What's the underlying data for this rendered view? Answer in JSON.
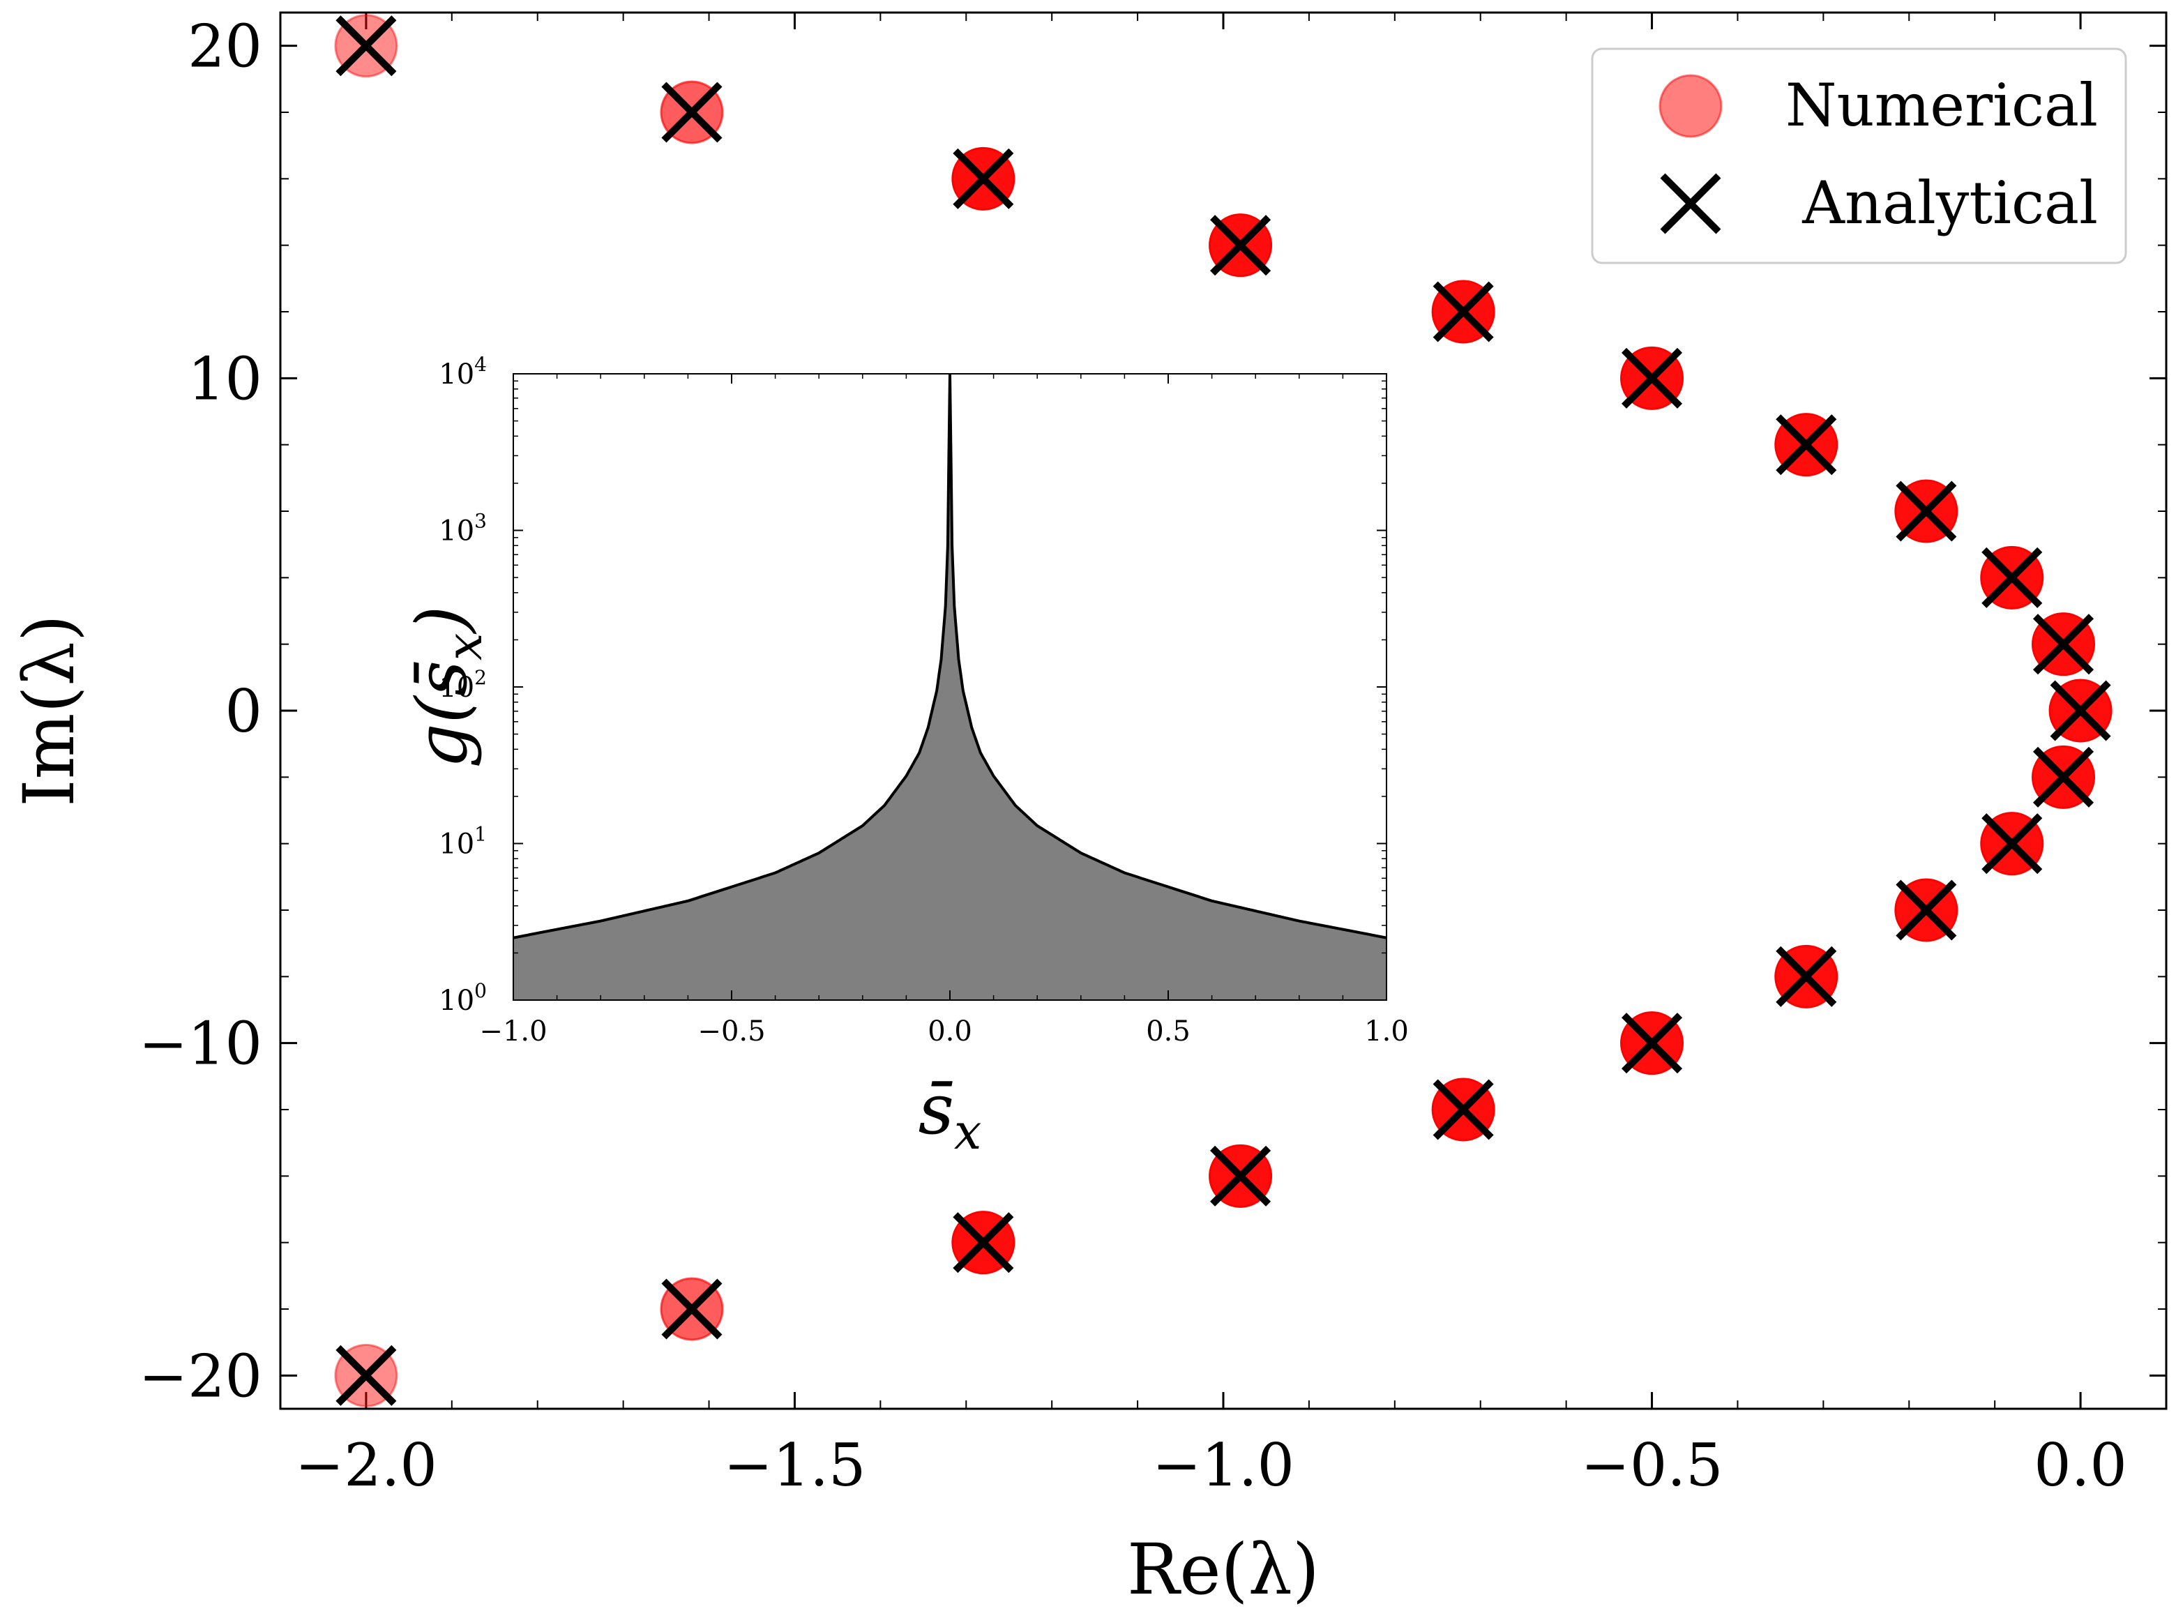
{
  "chart_data": [
    {
      "type": "scatter",
      "role": "main",
      "title": "",
      "xlabel": "Re(λ)",
      "ylabel": "Im(λ)",
      "xlim": [
        -2.1,
        0.1
      ],
      "ylim": [
        -21,
        21
      ],
      "xticks": [
        -2.0,
        -1.5,
        -1.0,
        -0.5,
        0.0
      ],
      "xtick_labels": [
        "−2.0",
        "−1.5",
        "−1.0",
        "−0.5",
        "0.0"
      ],
      "yticks": [
        -20,
        -10,
        0,
        10,
        20
      ],
      "ytick_labels": [
        "−20",
        "−10",
        "0",
        "10",
        "20"
      ],
      "legend_position": "top-right",
      "series": [
        {
          "name": "Numerical",
          "marker": "circle",
          "color": "#ff0000",
          "points": [
            {
              "x": -2.0,
              "y": 20,
              "alpha": 0.45
            },
            {
              "x": -1.62,
              "y": 18,
              "alpha": 0.65
            },
            {
              "x": -1.28,
              "y": 16,
              "alpha": 1.0
            },
            {
              "x": -0.98,
              "y": 14,
              "alpha": 1.0
            },
            {
              "x": -0.72,
              "y": 12,
              "alpha": 1.0
            },
            {
              "x": -0.5,
              "y": 10,
              "alpha": 1.0
            },
            {
              "x": -0.32,
              "y": 8,
              "alpha": 1.0
            },
            {
              "x": -0.18,
              "y": 6,
              "alpha": 1.0
            },
            {
              "x": -0.08,
              "y": 4,
              "alpha": 1.0
            },
            {
              "x": -0.02,
              "y": 2,
              "alpha": 1.0
            },
            {
              "x": 0.0,
              "y": 0,
              "alpha": 1.0
            },
            {
              "x": -0.02,
              "y": -2,
              "alpha": 1.0
            },
            {
              "x": -0.08,
              "y": -4,
              "alpha": 1.0
            },
            {
              "x": -0.18,
              "y": -6,
              "alpha": 1.0
            },
            {
              "x": -0.32,
              "y": -8,
              "alpha": 1.0
            },
            {
              "x": -0.5,
              "y": -10,
              "alpha": 1.0
            },
            {
              "x": -0.72,
              "y": -12,
              "alpha": 1.0
            },
            {
              "x": -0.98,
              "y": -14,
              "alpha": 1.0
            },
            {
              "x": -1.28,
              "y": -16,
              "alpha": 1.0
            },
            {
              "x": -1.62,
              "y": -18,
              "alpha": 0.65
            },
            {
              "x": -2.0,
              "y": -20,
              "alpha": 0.45
            }
          ]
        },
        {
          "name": "Analytical",
          "marker": "x",
          "color": "#000000",
          "points": [
            {
              "x": -2.0,
              "y": 20
            },
            {
              "x": -1.62,
              "y": 18
            },
            {
              "x": -1.28,
              "y": 16
            },
            {
              "x": -0.98,
              "y": 14
            },
            {
              "x": -0.72,
              "y": 12
            },
            {
              "x": -0.5,
              "y": 10
            },
            {
              "x": -0.32,
              "y": 8
            },
            {
              "x": -0.18,
              "y": 6
            },
            {
              "x": -0.08,
              "y": 4
            },
            {
              "x": -0.02,
              "y": 2
            },
            {
              "x": 0.0,
              "y": 0
            },
            {
              "x": -0.02,
              "y": -2
            },
            {
              "x": -0.08,
              "y": -4
            },
            {
              "x": -0.18,
              "y": -6
            },
            {
              "x": -0.32,
              "y": -8
            },
            {
              "x": -0.5,
              "y": -10
            },
            {
              "x": -0.72,
              "y": -12
            },
            {
              "x": -0.98,
              "y": -14
            },
            {
              "x": -1.28,
              "y": -16
            },
            {
              "x": -1.62,
              "y": -18
            },
            {
              "x": -2.0,
              "y": -20
            }
          ]
        }
      ]
    },
    {
      "type": "area",
      "role": "inset",
      "title": "",
      "xlabel": "s̄",
      "xlabel_sub": "x",
      "ylabel": "g(s̄",
      "ylabel_sub": "x",
      "ylabel_close": ")",
      "xlim": [
        -1.0,
        1.0
      ],
      "ylim_log10": [
        0,
        4
      ],
      "yscale": "log",
      "xticks": [
        -1.0,
        -0.5,
        0.0,
        0.5,
        1.0
      ],
      "xtick_labels": [
        "−1.0",
        "−0.5",
        "0.0",
        "0.5",
        "1.0"
      ],
      "yticks_exponents": [
        0,
        1,
        2,
        3,
        4
      ],
      "ytick_base": "10",
      "fill_color": "#808080",
      "line_color": "#000000",
      "curve": {
        "description": "symmetric peak, divergent at s_x = 0",
        "x": [
          -1.0,
          -0.8,
          -0.6,
          -0.4,
          -0.3,
          -0.2,
          -0.15,
          -0.1,
          -0.07,
          -0.05,
          -0.03,
          -0.02,
          -0.01,
          -0.005,
          0.0,
          0.005,
          0.01,
          0.02,
          0.03,
          0.05,
          0.07,
          0.1,
          0.15,
          0.2,
          0.3,
          0.4,
          0.6,
          0.8,
          1.0
        ],
        "y": [
          2.5,
          3.2,
          4.3,
          6.5,
          8.7,
          13.0,
          17.5,
          27.0,
          38.0,
          55.0,
          95.0,
          150.0,
          330.0,
          800.0,
          10000.0,
          800.0,
          330.0,
          150.0,
          95.0,
          55.0,
          38.0,
          27.0,
          17.5,
          13.0,
          8.7,
          6.5,
          4.3,
          3.2,
          2.5
        ]
      }
    }
  ]
}
